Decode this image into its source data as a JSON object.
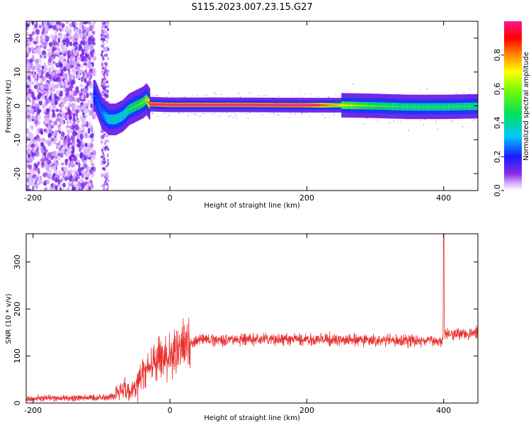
{
  "title": "S115.2023.007.23.15.G27",
  "chart_data": [
    {
      "type": "heatmap",
      "title": "S115.2023.007.23.15.G27",
      "xlabel": "Height of straight line (km)",
      "ylabel": "Frequency (Hz)",
      "xlim": [
        -210,
        450
      ],
      "ylim": [
        -25,
        25
      ],
      "xticks": [
        -200,
        0,
        200,
        400
      ],
      "yticks": [
        -20,
        -10,
        0,
        10,
        20
      ],
      "colorbar": {
        "label": "Normalized spectral amplitude",
        "range": [
          0.0,
          1.0
        ],
        "ticks": [
          "0.0",
          "0.2",
          "0.4",
          "0.6",
          "0.8"
        ],
        "colormap": "rainbow (violet-blue-cyan-green-yellow-red-magenta)"
      },
      "trace": {
        "x": [
          -110,
          -100,
          -90,
          -80,
          -70,
          -60,
          -50,
          -40,
          -35,
          -30,
          0,
          100,
          200,
          250,
          300,
          350,
          400,
          450
        ],
        "freq": [
          3,
          -2,
          -4,
          -4,
          -3,
          -1,
          0,
          1,
          2,
          0.5,
          0.3,
          0.3,
          0.2,
          0.2,
          0.0,
          -0.3,
          -0.3,
          -0.1
        ],
        "amplitude": [
          0.25,
          0.3,
          0.4,
          0.45,
          0.4,
          0.5,
          0.55,
          0.6,
          0.65,
          1.0,
          1.0,
          1.0,
          1.0,
          0.7,
          0.55,
          0.5,
          0.5,
          0.5
        ]
      },
      "noise_region": [
        -210,
        -110
      ],
      "grid": false
    },
    {
      "type": "line",
      "xlabel": "Height of straight line (km)",
      "ylabel": "SNR (10 * v/v)",
      "xlim": [
        -210,
        450
      ],
      "ylim": [
        0,
        360
      ],
      "xticks": [
        -200,
        0,
        200,
        400
      ],
      "yticks": [
        0,
        100,
        200,
        300
      ],
      "color": "#e8312f",
      "series": [
        {
          "x": [
            -210,
            -150,
            -100,
            -80,
            -70,
            -60,
            -50,
            -40,
            -30,
            -20,
            -10,
            0,
            10,
            20,
            30,
            50,
            100,
            200,
            300,
            399,
            400,
            401,
            420,
            450
          ],
          "values": [
            10,
            10,
            12,
            15,
            40,
            20,
            35,
            60,
            80,
            90,
            95,
            100,
            110,
            120,
            130,
            135,
            135,
            135,
            133,
            132,
            360,
            150,
            148,
            148
          ]
        }
      ],
      "grid": false
    }
  ]
}
